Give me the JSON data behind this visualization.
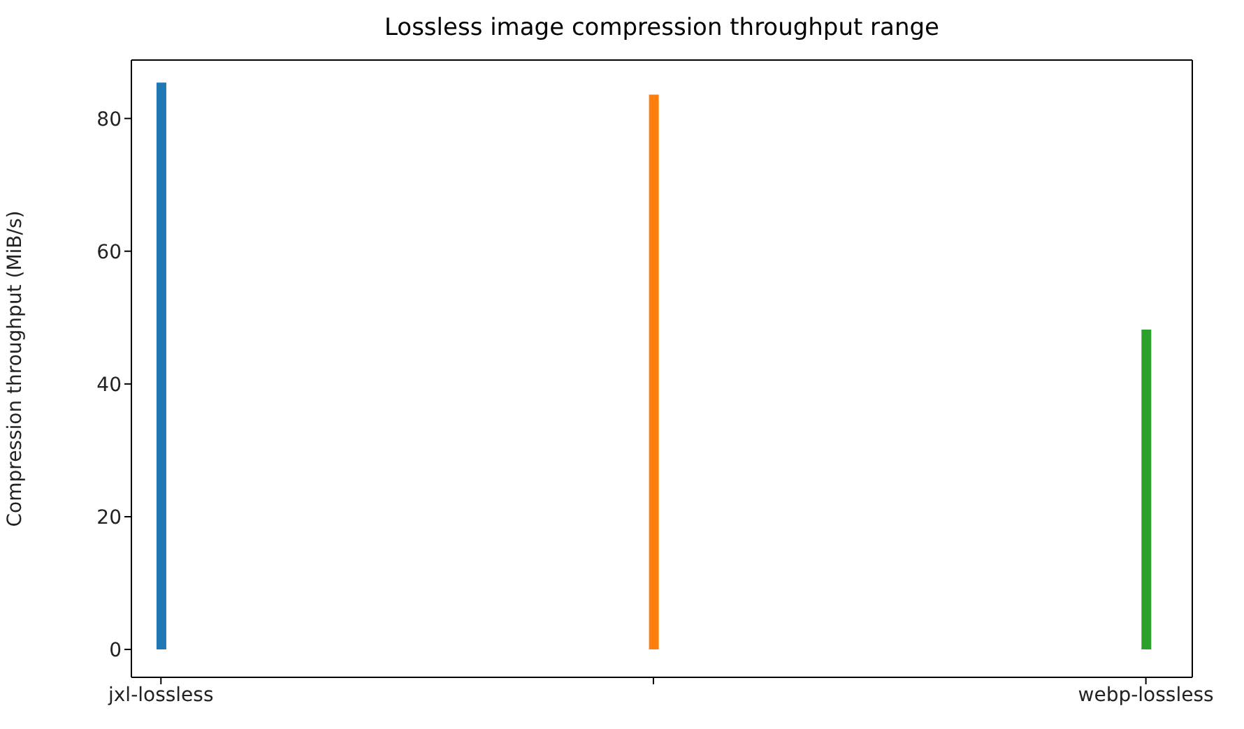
{
  "chart_data": {
    "type": "bar",
    "title": "Lossless image compression throughput range",
    "ylabel": "Compression throughput (MiB/s)",
    "categories": [
      "jxl-lossless",
      null,
      "webp-lossless"
    ],
    "base": [
      0,
      0,
      0
    ],
    "values": [
      85.4,
      83.6,
      48.2
    ],
    "colors": [
      "#1f77b4",
      "#ff7f0e",
      "#2ca02c"
    ],
    "ylim": [
      -4.2,
      88.8
    ],
    "yticks": [
      0,
      20,
      40,
      60,
      80
    ],
    "grid": false
  }
}
